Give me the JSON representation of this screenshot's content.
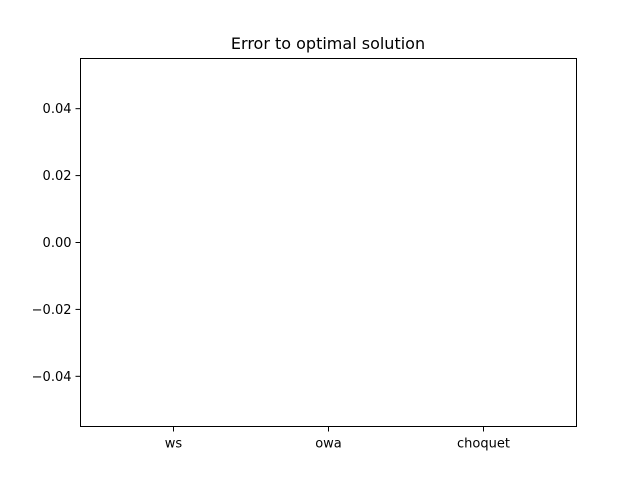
{
  "chart_data": {
    "type": "bar",
    "title": "Error to optimal solution",
    "xlabel": "",
    "ylabel": "",
    "categories": [
      "ws",
      "owa",
      "choquet"
    ],
    "values": [
      0,
      0,
      0
    ],
    "ylim": [
      -0.055,
      0.055
    ],
    "yticks": [
      0.04,
      0.02,
      0.0,
      -0.02,
      -0.04
    ],
    "ytick_labels": [
      "0.04",
      "0.02",
      "0.00",
      "−0.02",
      "−0.04"
    ],
    "grid": false,
    "legend": "none"
  }
}
